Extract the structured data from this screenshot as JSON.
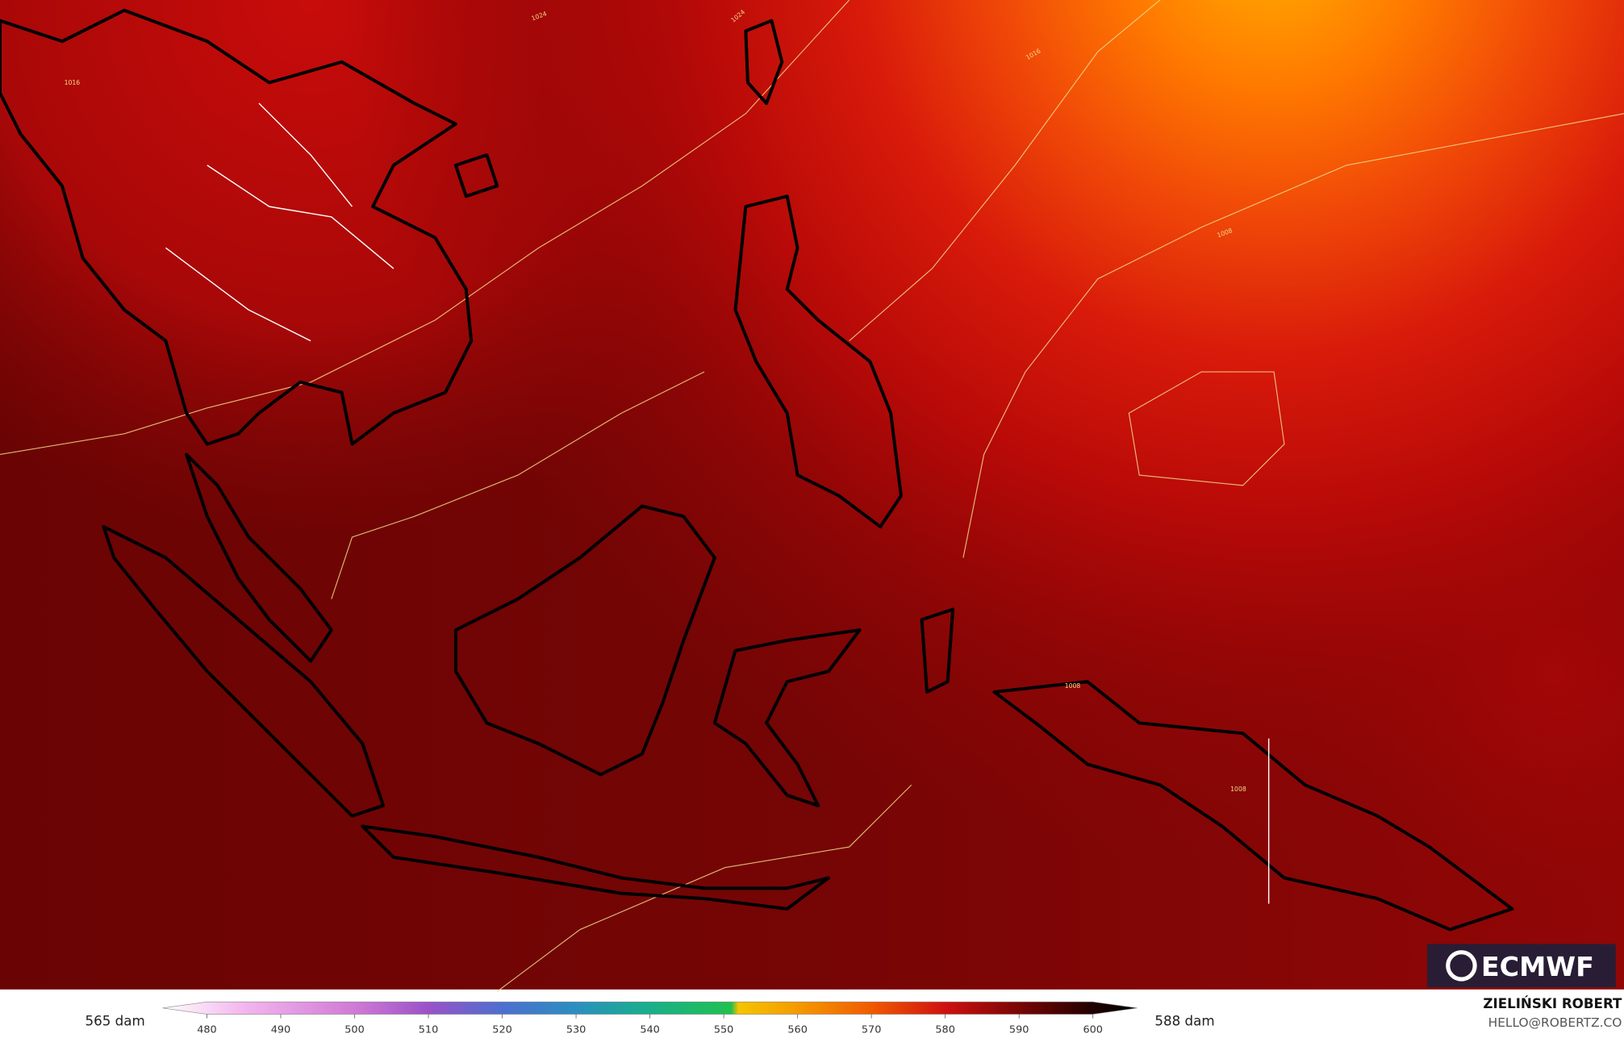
{
  "map": {
    "contour_labels": [
      "1024",
      "1024",
      "1016",
      "1016",
      "1008",
      "1008",
      "1008"
    ],
    "left_label": "565 dam",
    "right_label": "588 dam",
    "author": "ZIELIŃSKI ROBERT",
    "contact": "HELLO@ROBERTZ.CO",
    "logo": "ECMWF",
    "colorbar": {
      "lim": [
        474,
        606
      ],
      "ticks": [
        480,
        490,
        500,
        510,
        520,
        530,
        540,
        550,
        560,
        570,
        580,
        590,
        600
      ],
      "stops": [
        [
          474,
          "#ffffff"
        ],
        [
          485,
          "#f3b6ee"
        ],
        [
          500,
          "#d07ad6"
        ],
        [
          510,
          "#9a52c8"
        ],
        [
          520,
          "#4d6fd0"
        ],
        [
          530,
          "#2a8fc0"
        ],
        [
          540,
          "#18b08a"
        ],
        [
          551,
          "#20c050"
        ],
        [
          552,
          "#f5c400"
        ],
        [
          560,
          "#f59a00"
        ],
        [
          570,
          "#f05a00"
        ],
        [
          580,
          "#d01010"
        ],
        [
          590,
          "#7a0505"
        ],
        [
          600,
          "#200000"
        ],
        [
          606,
          "#000000"
        ]
      ]
    }
  }
}
